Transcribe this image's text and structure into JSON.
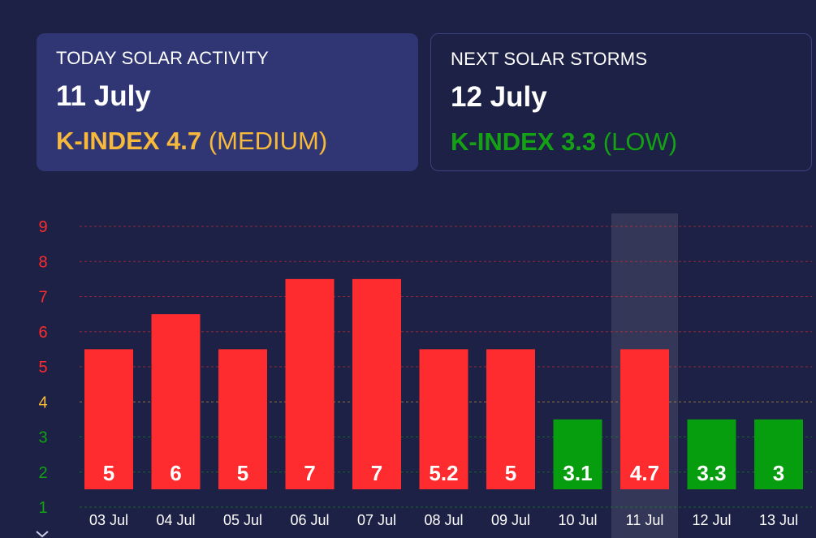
{
  "today_card": {
    "label": "TODAY SOLAR ACTIVITY",
    "date": "11 July",
    "kindex_text": "K-INDEX 4.7",
    "level_text": "(MEDIUM)",
    "color": "#f6b93b"
  },
  "next_card": {
    "label": "NEXT SOLAR STORMS",
    "date": "12 July",
    "kindex_text": "K-INDEX 3.3",
    "level_text": "(LOW)",
    "color": "#14a214"
  },
  "chart_data": {
    "type": "bar",
    "categories": [
      "03 Jul",
      "04 Jul",
      "05 Jul",
      "06 Jul",
      "07 Jul",
      "08 Jul",
      "09 Jul",
      "10 Jul",
      "11 Jul",
      "12 Jul",
      "13 Jul"
    ],
    "values": [
      5,
      6,
      5,
      7,
      7,
      5.2,
      5,
      3.1,
      4.7,
      3.3,
      3
    ],
    "value_labels": [
      "5",
      "6",
      "5",
      "7",
      "7",
      "5.2",
      "5",
      "3.1",
      "4.7",
      "3.3",
      "3"
    ],
    "bar_colors": [
      "#fe2c2f",
      "#fe2c2f",
      "#fe2c2f",
      "#fe2c2f",
      "#fe2c2f",
      "#fe2c2f",
      "#fe2c2f",
      "#069d0f",
      "#fe2c2f",
      "#069d0f",
      "#069d0f"
    ],
    "highlight_category": "11 Jul",
    "y_ticks": [
      1,
      2,
      3,
      4,
      5,
      6,
      7,
      8,
      9
    ],
    "y_tick_labels": [
      "1",
      "2",
      "3",
      "4",
      "5",
      "6",
      "7",
      "8",
      "9"
    ],
    "y_tick_colors": [
      "#13a113",
      "#13a113",
      "#13a113",
      "#f6b93b",
      "#fe2c2f",
      "#fe2c2f",
      "#fe2c2f",
      "#fe2c2f",
      "#fe2c2f"
    ],
    "ylim": [
      0.9,
      9.3
    ],
    "grid": true,
    "xlabel": "",
    "ylabel": ""
  },
  "scroll_icon": "chevron-down-icon"
}
